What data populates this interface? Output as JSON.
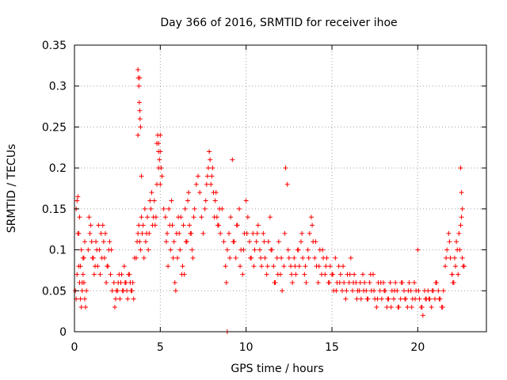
{
  "chart_data": {
    "type": "scatter",
    "title": "Day 366 of 2016, SRMTID for receiver ihoe",
    "xlabel": "GPS time / hours",
    "ylabel": "SRMTID / TECUs",
    "xlim": [
      0,
      24
    ],
    "ylim": [
      0,
      0.35
    ],
    "xticks": [
      0,
      5,
      10,
      15,
      20
    ],
    "yticks": [
      0,
      0.05,
      0.1,
      0.15,
      0.2,
      0.25,
      0.3,
      0.35
    ],
    "xtick_labels": [
      "0",
      "5",
      "10",
      "15",
      "20"
    ],
    "ytick_labels": [
      "0",
      "0.05",
      "0.1",
      "0.15",
      "0.2",
      "0.25",
      "0.3",
      "0.35"
    ],
    "grid": true,
    "marker": "plus",
    "color": "#ff0000",
    "series": [
      {
        "name": "SRMTID",
        "x": [
          0.05,
          0.1,
          0.15,
          0.2,
          0.25,
          0.3,
          0.35,
          0.4,
          0.45,
          0.5,
          0.55,
          0.6,
          0.65,
          0.7,
          0.2,
          0.3,
          0.4,
          0.5,
          0.6,
          0.1,
          0.15,
          0.25,
          0.35,
          0.45,
          0.55,
          0.8,
          0.9,
          1.0,
          1.1,
          1.2,
          1.3,
          1.4,
          1.5,
          1.6,
          1.7,
          1.8,
          1.9,
          2.0,
          2.1,
          2.2,
          0.85,
          0.95,
          1.05,
          1.15,
          1.25,
          1.35,
          1.45,
          1.55,
          1.65,
          1.75,
          1.85,
          1.95,
          2.05,
          2.15,
          2.3,
          2.4,
          2.5,
          2.6,
          2.7,
          2.8,
          2.9,
          3.0,
          3.1,
          3.2,
          3.3,
          3.4,
          3.5,
          2.35,
          2.45,
          2.55,
          2.65,
          2.75,
          2.85,
          2.95,
          3.05,
          3.15,
          3.25,
          3.35,
          3.45,
          3.7,
          3.72,
          3.75,
          3.78,
          3.8,
          3.82,
          3.85,
          3.7,
          3.8,
          3.9,
          3.6,
          3.7,
          3.8,
          3.9,
          4.0,
          4.1,
          4.2,
          4.3,
          4.4,
          4.5,
          4.6,
          4.7,
          4.8,
          4.9,
          5.0,
          5.1,
          5.2,
          3.65,
          3.75,
          3.85,
          3.95,
          4.05,
          4.15,
          4.25,
          4.35,
          4.45,
          4.55,
          4.65,
          4.75,
          4.8,
          4.85,
          4.9,
          4.95,
          5.0,
          5.05,
          5.1,
          4.9,
          5.0,
          5.3,
          5.4,
          5.5,
          5.6,
          5.7,
          5.8,
          5.9,
          6.0,
          6.1,
          6.2,
          6.3,
          6.4,
          6.5,
          6.6,
          6.7,
          6.8,
          6.9,
          7.0,
          7.1,
          7.2,
          7.3,
          7.4,
          7.5,
          5.35,
          5.45,
          5.55,
          5.65,
          5.75,
          5.85,
          5.95,
          6.05,
          6.15,
          6.25,
          6.35,
          6.45,
          6.55,
          6.65,
          6.75,
          6.85,
          6.95,
          7.6,
          7.7,
          7.8,
          7.9,
          8.0,
          8.1,
          8.2,
          8.3,
          8.4,
          8.5,
          8.6,
          8.7,
          7.65,
          7.75,
          7.85,
          7.95,
          8.05,
          8.15,
          8.25,
          8.35,
          8.45,
          8.8,
          8.9,
          9.0,
          9.1,
          9.2,
          9.3,
          9.4,
          9.5,
          9.6,
          9.7,
          9.8,
          9.9,
          10.0,
          10.1,
          10.2,
          10.3,
          10.4,
          10.5,
          8.85,
          9.05,
          9.25,
          9.45,
          9.65,
          9.85,
          10.05,
          10.25,
          10.45,
          8.9,
          10.6,
          10.7,
          10.8,
          10.9,
          11.0,
          11.1,
          11.2,
          11.3,
          11.4,
          11.5,
          11.6,
          11.7,
          11.8,
          11.9,
          12.0,
          12.1,
          12.2,
          12.3,
          12.4,
          12.5,
          10.65,
          10.85,
          11.05,
          11.25,
          11.45,
          11.65,
          11.85,
          12.05,
          12.25,
          12.45,
          12.6,
          12.7,
          12.8,
          12.9,
          13.0,
          13.1,
          13.2,
          13.3,
          13.4,
          13.5,
          13.6,
          13.7,
          13.8,
          13.9,
          14.0,
          14.1,
          14.2,
          14.3,
          14.4,
          14.5,
          12.65,
          12.85,
          13.05,
          13.25,
          13.45,
          13.65,
          13.85,
          14.05,
          14.25,
          14.45,
          14.6,
          14.7,
          14.8,
          14.9,
          15.0,
          15.1,
          15.2,
          15.3,
          15.4,
          15.5,
          15.6,
          15.7,
          15.8,
          15.9,
          16.0,
          16.1,
          16.2,
          16.3,
          16.4,
          16.5,
          14.65,
          14.85,
          15.05,
          15.25,
          15.45,
          15.65,
          15.85,
          16.05,
          16.25,
          16.45,
          16.6,
          16.7,
          16.8,
          16.9,
          17.0,
          17.1,
          17.2,
          17.3,
          17.4,
          17.5,
          17.6,
          17.7,
          17.8,
          17.9,
          18.0,
          18.1,
          18.2,
          18.3,
          18.4,
          18.5,
          16.65,
          16.85,
          17.05,
          17.25,
          17.45,
          17.65,
          17.85,
          18.05,
          18.25,
          18.45,
          18.6,
          18.7,
          18.8,
          18.9,
          19.0,
          19.1,
          19.2,
          19.3,
          19.4,
          19.5,
          19.6,
          19.7,
          19.8,
          19.9,
          20.0,
          20.1,
          20.2,
          20.3,
          20.4,
          20.5,
          18.65,
          18.85,
          19.05,
          19.25,
          19.45,
          19.65,
          19.85,
          20.05,
          20.25,
          20.45,
          20.6,
          20.7,
          20.8,
          20.9,
          21.0,
          21.1,
          21.2,
          21.3,
          21.4,
          21.5,
          21.6,
          21.7,
          21.8,
          21.9,
          22.0,
          20.65,
          20.85,
          21.05,
          21.25,
          21.45,
          21.65,
          21.85,
          22.0,
          22.1,
          22.2,
          22.3,
          22.4,
          22.5,
          22.6,
          22.7,
          22.05,
          22.15,
          22.25,
          22.35,
          22.45,
          22.55,
          22.65,
          22.5,
          22.55,
          22.6
        ],
        "y": [
          0.05,
          0.15,
          0.16,
          0.12,
          0.08,
          0.06,
          0.04,
          0.03,
          0.05,
          0.07,
          0.06,
          0.04,
          0.03,
          0.05,
          0.165,
          0.14,
          0.1,
          0.09,
          0.11,
          0.04,
          0.07,
          0.12,
          0.08,
          0.06,
          0.09,
          0.1,
          0.12,
          0.11,
          0.09,
          0.08,
          0.1,
          0.13,
          0.07,
          0.09,
          0.11,
          0.12,
          0.08,
          0.1,
          0.07,
          0.05,
          0.14,
          0.13,
          0.09,
          0.07,
          0.11,
          0.08,
          0.1,
          0.12,
          0.13,
          0.09,
          0.06,
          0.08,
          0.11,
          0.1,
          0.06,
          0.04,
          0.05,
          0.07,
          0.06,
          0.05,
          0.08,
          0.06,
          0.04,
          0.07,
          0.05,
          0.06,
          0.09,
          0.03,
          0.05,
          0.06,
          0.04,
          0.07,
          0.05,
          0.06,
          0.05,
          0.07,
          0.06,
          0.05,
          0.04,
          0.32,
          0.31,
          0.3,
          0.28,
          0.27,
          0.26,
          0.25,
          0.24,
          0.31,
          0.19,
          0.09,
          0.12,
          0.11,
          0.14,
          0.13,
          0.15,
          0.12,
          0.1,
          0.16,
          0.17,
          0.14,
          0.13,
          0.18,
          0.2,
          0.22,
          0.19,
          0.15,
          0.11,
          0.13,
          0.1,
          0.12,
          0.09,
          0.11,
          0.14,
          0.12,
          0.15,
          0.13,
          0.16,
          0.14,
          0.23,
          0.24,
          0.22,
          0.21,
          0.24,
          0.2,
          0.19,
          0.23,
          0.18,
          0.14,
          0.12,
          0.15,
          0.1,
          0.13,
          0.11,
          0.05,
          0.09,
          0.12,
          0.14,
          0.08,
          0.07,
          0.11,
          0.16,
          0.13,
          0.12,
          0.09,
          0.15,
          0.18,
          0.19,
          0.17,
          0.14,
          0.12,
          0.11,
          0.08,
          0.13,
          0.16,
          0.09,
          0.06,
          0.12,
          0.14,
          0.1,
          0.07,
          0.13,
          0.15,
          0.11,
          0.17,
          0.12,
          0.1,
          0.14,
          0.15,
          0.18,
          0.2,
          0.21,
          0.19,
          0.17,
          0.16,
          0.14,
          0.13,
          0.12,
          0.15,
          0.11,
          0.16,
          0.19,
          0.22,
          0.18,
          0.2,
          0.14,
          0.17,
          0.13,
          0.15,
          0.08,
          0.1,
          0.12,
          0.14,
          0.21,
          0.11,
          0.09,
          0.13,
          0.15,
          0.1,
          0.07,
          0.12,
          0.16,
          0.14,
          0.11,
          0.09,
          0.12,
          0.1,
          0.06,
          0.09,
          0.11,
          0.13,
          0.08,
          0.1,
          0.12,
          0.09,
          0.08,
          0.0,
          0.11,
          0.13,
          0.1,
          0.08,
          0.12,
          0.09,
          0.07,
          0.11,
          0.14,
          0.1,
          0.08,
          0.06,
          0.09,
          0.11,
          0.07,
          0.05,
          0.08,
          0.2,
          0.18,
          0.09,
          0.12,
          0.09,
          0.11,
          0.08,
          0.1,
          0.06,
          0.07,
          0.09,
          0.12,
          0.1,
          0.08,
          0.06,
          0.09,
          0.07,
          0.1,
          0.08,
          0.11,
          0.09,
          0.07,
          0.06,
          0.1,
          0.12,
          0.14,
          0.11,
          0.09,
          0.08,
          0.06,
          0.1,
          0.07,
          0.09,
          0.07,
          0.08,
          0.1,
          0.12,
          0.08,
          0.09,
          0.13,
          0.11,
          0.08,
          0.1,
          0.07,
          0.09,
          0.06,
          0.08,
          0.07,
          0.05,
          0.09,
          0.06,
          0.08,
          0.07,
          0.05,
          0.06,
          0.04,
          0.07,
          0.06,
          0.09,
          0.05,
          0.07,
          0.06,
          0.05,
          0.08,
          0.06,
          0.07,
          0.05,
          0.06,
          0.08,
          0.05,
          0.07,
          0.06,
          0.04,
          0.05,
          0.04,
          0.07,
          0.06,
          0.05,
          0.04,
          0.06,
          0.05,
          0.07,
          0.04,
          0.03,
          0.06,
          0.05,
          0.04,
          0.06,
          0.05,
          0.03,
          0.04,
          0.06,
          0.05,
          0.06,
          0.05,
          0.04,
          0.07,
          0.05,
          0.04,
          0.06,
          0.05,
          0.04,
          0.03,
          0.04,
          0.06,
          0.05,
          0.03,
          0.04,
          0.06,
          0.05,
          0.04,
          0.03,
          0.06,
          0.05,
          0.04,
          0.06,
          0.05,
          0.1,
          0.04,
          0.03,
          0.02,
          0.05,
          0.04,
          0.05,
          0.03,
          0.06,
          0.04,
          0.05,
          0.03,
          0.04,
          0.05,
          0.03,
          0.04,
          0.05,
          0.04,
          0.03,
          0.05,
          0.04,
          0.06,
          0.05,
          0.04,
          0.03,
          0.05,
          0.08,
          0.1,
          0.12,
          0.09,
          0.07,
          0.04,
          0.05,
          0.06,
          0.04,
          0.03,
          0.09,
          0.11,
          0.07,
          0.06,
          0.08,
          0.1,
          0.12,
          0.13,
          0.09,
          0.08,
          0.06,
          0.09,
          0.11,
          0.07,
          0.1,
          0.14,
          0.08,
          0.2,
          0.17,
          0.15
        ]
      }
    ]
  }
}
